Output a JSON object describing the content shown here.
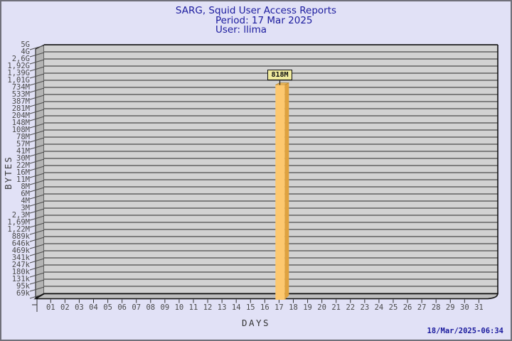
{
  "header": {
    "title": "SARG, Squid User Access Reports",
    "period": "Period: 17 Mar 2025",
    "user": "User: llima"
  },
  "axes": {
    "y_title": "BYTES",
    "x_title": "DAYS",
    "y_ticks": [
      "5G",
      "4G",
      "2,6G",
      "1,92G",
      "1,39G",
      "1,01G",
      "734M",
      "533M",
      "387M",
      "281M",
      "204M",
      "148M",
      "108M",
      "78M",
      "57M",
      "41M",
      "30M",
      "22M",
      "16M",
      "11M",
      "8M",
      "6M",
      "4M",
      "3M",
      "2,3M",
      "1,69M",
      "1,22M",
      "889k",
      "646k",
      "469k",
      "341k",
      "247k",
      "180k",
      "131k",
      "95k",
      "69k"
    ],
    "x_ticks": [
      "01",
      "02",
      "03",
      "04",
      "05",
      "06",
      "07",
      "08",
      "09",
      "10",
      "11",
      "12",
      "13",
      "14",
      "15",
      "16",
      "17",
      "18",
      "19",
      "20",
      "21",
      "22",
      "23",
      "24",
      "25",
      "26",
      "27",
      "28",
      "29",
      "30",
      "31"
    ]
  },
  "bar": {
    "day": "17",
    "value_label": "818M"
  },
  "footer": {
    "timestamp": "18/Mar/2025-06:34"
  },
  "colors": {
    "background": "#e1e1f6",
    "title_text": "#1b1b9e",
    "plot_bg": "#d2d2d2",
    "gridline": "#636363",
    "wall": "#b4b4b4",
    "floor": "#bdbdbd",
    "bar_front": "#fdc86f",
    "bar_side": "#dfa23f",
    "bar_top": "#e9b457",
    "bar_label_bg": "#f0eb9e",
    "tick_text": "#4a4a4a",
    "timestamp_text": "#1b1b9e"
  },
  "chart_data": {
    "type": "bar",
    "title": "SARG, Squid User Access Reports",
    "subtitle": "Period: 17 Mar 2025 — User: llima",
    "xlabel": "DAYS",
    "ylabel": "BYTES",
    "categories": [
      "01",
      "02",
      "03",
      "04",
      "05",
      "06",
      "07",
      "08",
      "09",
      "10",
      "11",
      "12",
      "13",
      "14",
      "15",
      "16",
      "17",
      "18",
      "19",
      "20",
      "21",
      "22",
      "23",
      "24",
      "25",
      "26",
      "27",
      "28",
      "29",
      "30",
      "31"
    ],
    "values": [
      0,
      0,
      0,
      0,
      0,
      0,
      0,
      0,
      0,
      0,
      0,
      0,
      0,
      0,
      0,
      0,
      818000000,
      0,
      0,
      0,
      0,
      0,
      0,
      0,
      0,
      0,
      0,
      0,
      0,
      0,
      0
    ],
    "value_labels": {
      "17": "818M"
    },
    "unit": "bytes",
    "y_scale": "log",
    "ylim": [
      69000,
      5000000000
    ],
    "y_tick_labels": [
      "5G",
      "4G",
      "2,6G",
      "1,92G",
      "1,39G",
      "1,01G",
      "734M",
      "533M",
      "387M",
      "281M",
      "204M",
      "148M",
      "108M",
      "78M",
      "57M",
      "41M",
      "30M",
      "22M",
      "16M",
      "11M",
      "8M",
      "6M",
      "4M",
      "3M",
      "2,3M",
      "1,69M",
      "1,22M",
      "889k",
      "646k",
      "469k",
      "341k",
      "247k",
      "180k",
      "131k",
      "95k",
      "69k"
    ],
    "grid": true,
    "legend_position": "none",
    "style": "3d-bar",
    "annotations": [
      "818M label above bar at day 17",
      "timestamp 18/Mar/2025-06:34 bottom right"
    ]
  }
}
